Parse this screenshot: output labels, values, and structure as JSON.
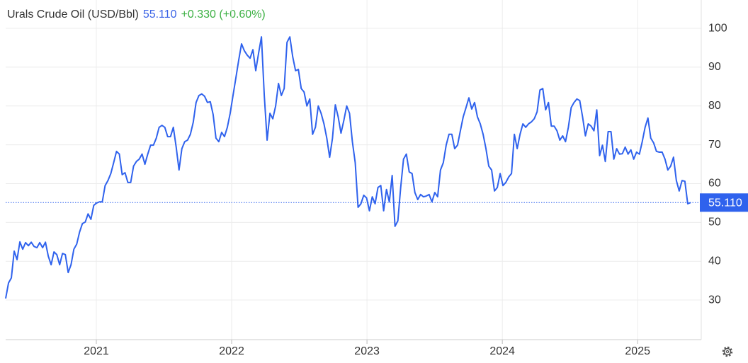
{
  "chart_data": {
    "type": "line",
    "title": "Urals Crude Oil (USD/Bbl)",
    "price": {
      "value": 55.11,
      "label": "55.110"
    },
    "change": "+0.330 (+0.60%)",
    "color": "#2f62ed",
    "grid": true,
    "xlim": [
      2020.33,
      2025.47
    ],
    "xticks": [
      2021,
      2022,
      2023,
      2024,
      2025
    ],
    "ylim": [
      19.8,
      107.3
    ],
    "yticks": [
      30,
      40,
      50,
      60,
      70,
      80,
      90,
      100
    ],
    "x": [
      2020.33,
      2020.351,
      2020.372,
      2020.393,
      2020.414,
      2020.435,
      2020.456,
      2020.477,
      2020.498,
      2020.519,
      2020.54,
      2020.561,
      2020.582,
      2020.603,
      2020.624,
      2020.645,
      2020.666,
      2020.687,
      2020.708,
      2020.729,
      2020.75,
      2020.771,
      2020.792,
      2020.813,
      2020.834,
      2020.855,
      2020.876,
      2020.897,
      2020.918,
      2020.939,
      2020.96,
      2020.981,
      2021.002,
      2021.023,
      2021.044,
      2021.065,
      2021.086,
      2021.107,
      2021.128,
      2021.149,
      2021.17,
      2021.191,
      2021.212,
      2021.233,
      2021.254,
      2021.275,
      2021.296,
      2021.317,
      2021.338,
      2021.359,
      2021.38,
      2021.401,
      2021.422,
      2021.443,
      2021.464,
      2021.485,
      2021.506,
      2021.527,
      2021.548,
      2021.569,
      2021.59,
      2021.611,
      2021.632,
      2021.653,
      2021.674,
      2021.695,
      2021.716,
      2021.737,
      2021.758,
      2021.779,
      2021.8,
      2021.821,
      2021.842,
      2021.863,
      2021.884,
      2021.905,
      2021.926,
      2021.947,
      2021.968,
      2021.989,
      2022.01,
      2022.031,
      2022.052,
      2022.073,
      2022.094,
      2022.115,
      2022.136,
      2022.157,
      2022.178,
      2022.199,
      2022.22,
      2022.241,
      2022.262,
      2022.283,
      2022.304,
      2022.325,
      2022.346,
      2022.367,
      2022.388,
      2022.409,
      2022.43,
      2022.451,
      2022.472,
      2022.493,
      2022.514,
      2022.535,
      2022.556,
      2022.577,
      2022.598,
      2022.619,
      2022.64,
      2022.661,
      2022.682,
      2022.703,
      2022.724,
      2022.745,
      2022.766,
      2022.787,
      2022.808,
      2022.829,
      2022.85,
      2022.871,
      2022.892,
      2022.913,
      2022.934,
      2022.955,
      2022.976,
      2022.997,
      2023.018,
      2023.039,
      2023.06,
      2023.081,
      2023.102,
      2023.123,
      2023.144,
      2023.165,
      2023.186,
      2023.207,
      2023.228,
      2023.249,
      2023.27,
      2023.291,
      2023.312,
      2023.333,
      2023.354,
      2023.375,
      2023.396,
      2023.417,
      2023.438,
      2023.459,
      2023.48,
      2023.501,
      2023.522,
      2023.543,
      2023.564,
      2023.585,
      2023.606,
      2023.627,
      2023.648,
      2023.669,
      2023.69,
      2023.711,
      2023.732,
      2023.753,
      2023.774,
      2023.795,
      2023.816,
      2023.837,
      2023.858,
      2023.879,
      2023.9,
      2023.921,
      2023.942,
      2023.963,
      2023.984,
      2024.005,
      2024.026,
      2024.047,
      2024.068,
      2024.089,
      2024.11,
      2024.131,
      2024.152,
      2024.173,
      2024.194,
      2024.215,
      2024.236,
      2024.257,
      2024.278,
      2024.299,
      2024.32,
      2024.341,
      2024.362,
      2024.383,
      2024.404,
      2024.425,
      2024.446,
      2024.467,
      2024.488,
      2024.509,
      2024.53,
      2024.551,
      2024.572,
      2024.593,
      2024.614,
      2024.635,
      2024.656,
      2024.677,
      2024.698,
      2024.719,
      2024.74,
      2024.761,
      2024.782,
      2024.803,
      2024.824,
      2024.845,
      2024.866,
      2024.887,
      2024.908,
      2024.929,
      2024.95,
      2024.971,
      2024.992,
      2025.013,
      2025.034,
      2025.055,
      2025.076,
      2025.097,
      2025.118,
      2025.139,
      2025.16,
      2025.181,
      2025.202,
      2025.223,
      2025.244,
      2025.265,
      2025.286,
      2025.307,
      2025.328,
      2025.349,
      2025.37,
      2025.391
    ],
    "values": [
      30.4,
      34.4,
      35.7,
      42.6,
      40.4,
      45,
      43.1,
      44.8,
      44.0,
      44.9,
      43.8,
      43.5,
      44.8,
      43.5,
      44.9,
      41.3,
      39.1,
      42.4,
      41.7,
      39.1,
      42.0,
      41.7,
      37.1,
      39.1,
      43.1,
      44.4,
      47.5,
      49.7,
      50.1,
      52.2,
      50.8,
      54.4,
      55.0,
      55.3,
      55.3,
      59.5,
      60.8,
      62.6,
      65.4,
      68.3,
      67.6,
      62.3,
      62.8,
      60.3,
      60.3,
      64.5,
      65.7,
      66.3,
      67.6,
      65.0,
      67.6,
      69.9,
      69.9,
      71.7,
      74.5,
      75.0,
      74.5,
      72.1,
      72.1,
      74.5,
      69.4,
      63.5,
      69.0,
      70.8,
      71.2,
      72.7,
      75.8,
      80.9,
      82.7,
      83.1,
      82.5,
      80.9,
      81.1,
      77.8,
      71.7,
      70.8,
      73.2,
      72.1,
      74.5,
      78.1,
      82.7,
      87.2,
      91.8,
      96.0,
      94.2,
      93.1,
      92.3,
      94.5,
      89.1,
      93.6,
      97.8,
      82.7,
      71.2,
      78.1,
      76.7,
      80.0,
      85.8,
      82.7,
      84.5,
      96.4,
      97.8,
      92.7,
      89.1,
      89.4,
      84.5,
      83.6,
      80.0,
      81.8,
      72.7,
      74.5,
      80.0,
      78.1,
      75.4,
      71.7,
      66.8,
      71.7,
      80.3,
      77.2,
      73.0,
      76.3,
      80.0,
      78.1,
      70.8,
      65.4,
      53.9,
      54.8,
      57.0,
      56.3,
      53.0,
      56.6,
      54.8,
      59.0,
      59.5,
      53.0,
      58.5,
      55.3,
      62.1,
      49.0,
      50.4,
      59.0,
      66.3,
      67.6,
      63.0,
      62.6,
      57.7,
      55.9,
      57.2,
      56.6,
      56.8,
      57.2,
      55.3,
      57.7,
      56.6,
      63.5,
      65.4,
      69.9,
      72.7,
      72.7,
      69.0,
      69.9,
      73.6,
      77.2,
      79.6,
      82.1,
      79.2,
      80.9,
      77.2,
      75.4,
      72.7,
      69.0,
      64.5,
      63.5,
      58.1,
      59.0,
      62.6,
      59.5,
      60.3,
      61.7,
      62.6,
      72.7,
      69.0,
      72.7,
      75.4,
      74.5,
      75.4,
      75.9,
      76.7,
      78.5,
      84.1,
      84.5,
      79.0,
      80.9,
      74.8,
      74.8,
      73.6,
      71.2,
      72.3,
      70.8,
      74.5,
      79.6,
      80.9,
      81.8,
      81.4,
      77.2,
      72.3,
      75.4,
      74.8,
      73.6,
      79.0,
      67.2,
      69.9,
      65.7,
      73.4,
      73.4,
      66.3,
      69.0,
      67.6,
      67.7,
      69.4,
      67.6,
      68.7,
      66.3,
      68.1,
      67.6,
      70.8,
      74.5,
      76.9,
      71.7,
      70.5,
      68.3,
      68.1,
      68.1,
      66.3,
      63.5,
      64.5,
      66.8,
      60.8,
      58.1,
      60.8,
      60.6,
      54.8,
      55.1
    ]
  }
}
